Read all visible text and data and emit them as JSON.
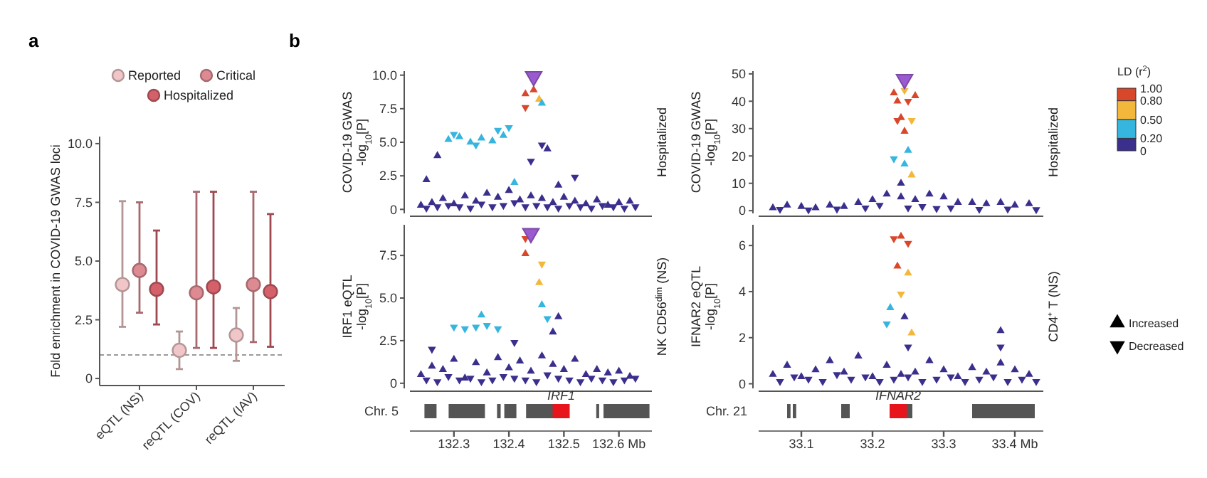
{
  "chart_data": [
    {
      "type": "scatter",
      "title": "a",
      "ylabel": "Fold enrichment in COVID-19 GWAS loci",
      "categories": [
        "eQTL (NS)",
        "reQTL (COV)",
        "reQTL (IAV)"
      ],
      "ylim": [
        -0.3,
        10.3
      ],
      "yticks": [
        0,
        {
          "value": 2.5,
          "label": "2.5"
        },
        {
          "value": 5,
          "label": "5.0"
        },
        {
          "value": 7.5,
          "label": "7.5"
        },
        {
          "value": 10,
          "label": "10.0"
        }
      ],
      "legend": "top",
      "marker": "circle",
      "ref_lines": [
        {
          "axis": "y",
          "value": 1,
          "line_style": "dashed",
          "color": "#9a9a9a"
        }
      ],
      "series": [
        {
          "name": "Reported",
          "color": "#f0c6c8",
          "values": [
            4.0,
            1.2,
            1.85
          ],
          "errors": [
            [
              2.2,
              7.55
            ],
            [
              0.4,
              2.0
            ],
            [
              0.75,
              3.0
            ]
          ]
        },
        {
          "name": "Critical",
          "color": "#de8a92",
          "values": [
            4.6,
            3.65,
            4.0
          ],
          "errors": [
            [
              2.8,
              7.5
            ],
            [
              1.3,
              7.95
            ],
            [
              1.55,
              7.95
            ]
          ]
        },
        {
          "name": "Hospitalized",
          "color": "#d4606a",
          "values": [
            3.8,
            3.9,
            3.7
          ],
          "errors": [
            [
              2.3,
              6.3
            ],
            [
              1.3,
              7.95
            ],
            [
              1.35,
              7.0
            ]
          ]
        }
      ]
    },
    {
      "type": "scatter",
      "title": "b",
      "subtitle": "Hospitalized",
      "ylabel": "COVID-19 GWAS\n-log$_{10}$[P]",
      "xlim": [
        132.22,
        132.66
      ],
      "ylim": [
        -0.3,
        10.3
      ],
      "yticks": [
        0,
        {
          "value": 2.5,
          "label": "2.5"
        },
        {
          "value": 5,
          "label": "5.0"
        },
        {
          "value": 7.5,
          "label": "7.5"
        },
        {
          "value": 10,
          "label": "10.0"
        }
      ],
      "tick_labels": "y",
      "marker": "triangle",
      "series": [
        {
          "x": [
            132.24,
            132.26,
            132.28,
            132.3,
            132.32,
            132.34,
            132.36,
            132.38,
            132.4,
            132.42,
            132.44,
            132.46,
            132.48,
            132.5,
            132.52,
            132.54,
            132.56,
            132.58,
            132.6,
            132.62,
            132.29,
            132.31,
            132.33,
            132.35,
            132.37,
            132.39,
            132.43,
            132.445,
            132.455,
            132.46,
            132.25,
            132.27,
            132.41,
            132.47,
            132.49
          ],
          "values": [
            0.3,
            0.5,
            0.8,
            0.4,
            1.0,
            0.6,
            1.2,
            0.9,
            1.4,
            0.7,
            1.0,
            0.8,
            0.5,
            0.9,
            0.6,
            0.4,
            0.7,
            0.3,
            0.5,
            0.6,
            5.2,
            5.4,
            5.0,
            5.3,
            5.1,
            5.5,
            8.6,
            8.9,
            8.2,
            7.9,
            2.2,
            4.0,
            2.0,
            4.5,
            1.8
          ],
          "colors": [
            "#3b2f8e",
            "#3b2f8e",
            "#3b2f8e",
            "#3b2f8e",
            "#3b2f8e",
            "#3b2f8e",
            "#3b2f8e",
            "#3b2f8e",
            "#3b2f8e",
            "#3b2f8e",
            "#3b2f8e",
            "#3b2f8e",
            "#3b2f8e",
            "#3b2f8e",
            "#3b2f8e",
            "#3b2f8e",
            "#3b2f8e",
            "#3b2f8e",
            "#3b2f8e",
            "#3b2f8e",
            "#36b5df",
            "#36b5df",
            "#36b5df",
            "#36b5df",
            "#36b5df",
            "#36b5df",
            "#d9472b",
            "#d9472b",
            "#f3b73c",
            "#36b5df",
            "#3b2f8e",
            "#3b2f8e",
            "#36b5df",
            "#3b2f8e",
            "#3b2f8e"
          ]
        },
        {
          "x": [
            132.25,
            132.27,
            132.29,
            132.31,
            132.33,
            132.35,
            132.37,
            132.39,
            132.41,
            132.43,
            132.45,
            132.47,
            132.49,
            132.51,
            132.53,
            132.55,
            132.57,
            132.59,
            132.61,
            132.63,
            132.3,
            132.34,
            132.38,
            132.4,
            132.44,
            132.46,
            132.43,
            132.52
          ],
          "values": [
            0.1,
            0.2,
            0.3,
            0.2,
            0.1,
            0.4,
            0.2,
            0.3,
            0.5,
            0.2,
            0.3,
            0.2,
            0.1,
            0.3,
            0.2,
            0.1,
            0.3,
            0.2,
            0.1,
            0.2,
            5.6,
            4.8,
            5.9,
            6.1,
            3.6,
            4.8,
            7.6,
            2.4
          ],
          "colors": [
            "#3b2f8e",
            "#3b2f8e",
            "#3b2f8e",
            "#3b2f8e",
            "#3b2f8e",
            "#3b2f8e",
            "#3b2f8e",
            "#3b2f8e",
            "#3b2f8e",
            "#3b2f8e",
            "#3b2f8e",
            "#3b2f8e",
            "#3b2f8e",
            "#3b2f8e",
            "#3b2f8e",
            "#3b2f8e",
            "#3b2f8e",
            "#3b2f8e",
            "#3b2f8e",
            "#3b2f8e",
            "#36b5df",
            "#36b5df",
            "#36b5df",
            "#36b5df",
            "#3b2f8e",
            "#3b2f8e",
            "#d9472b",
            "#3b2f8e"
          ]
        },
        {
          "color": "#9b5bd0",
          "x": [
            132.445
          ],
          "values": [
            9.9
          ]
        }
      ]
    },
    {
      "type": "scatter",
      "subtitle": "Hospitalized",
      "ylabel": "COVID-19 GWAS\n-log$_{10}$[P]",
      "xlim": [
        33.04,
        33.44
      ],
      "ylim": [
        -1,
        51
      ],
      "yticks": [
        0,
        10,
        20,
        30,
        40,
        50
      ],
      "tick_labels": "y",
      "marker": "triangle",
      "clabel": "LD (r$^{2}$)",
      "cticks": [
        0,
        {
          "value": 0.2,
          "label": "0.20"
        },
        {
          "value": 0.5,
          "label": "0.50"
        },
        {
          "value": 0.8,
          "label": "0.80"
        },
        {
          "value": 1,
          "label": "1.00"
        }
      ],
      "colors": [
        "#3b2f8e",
        "#36b5df",
        "#f3b73c",
        "#d9472b"
      ],
      "series": [
        {
          "x": [
            33.06,
            33.08,
            33.1,
            33.12,
            33.14,
            33.16,
            33.18,
            33.2,
            33.22,
            33.24,
            33.26,
            33.28,
            33.3,
            33.32,
            33.34,
            33.36,
            33.38,
            33.4,
            33.42,
            33.23,
            33.235,
            33.24,
            33.245,
            33.25,
            33.255,
            33.24,
            33.245,
            33.26
          ],
          "values": [
            1,
            2,
            1.5,
            1,
            2,
            1.5,
            3,
            4,
            6,
            5,
            4,
            6,
            5,
            3,
            3,
            2.5,
            3,
            2,
            2.5,
            43,
            40,
            34,
            29,
            22,
            13,
            10,
            17,
            42
          ],
          "colors": [
            "#3b2f8e",
            "#3b2f8e",
            "#3b2f8e",
            "#3b2f8e",
            "#3b2f8e",
            "#3b2f8e",
            "#3b2f8e",
            "#3b2f8e",
            "#3b2f8e",
            "#3b2f8e",
            "#3b2f8e",
            "#3b2f8e",
            "#3b2f8e",
            "#3b2f8e",
            "#3b2f8e",
            "#3b2f8e",
            "#3b2f8e",
            "#3b2f8e",
            "#3b2f8e",
            "#d9472b",
            "#d9472b",
            "#d9472b",
            "#d9472b",
            "#36b5df",
            "#f3b73c",
            "#3b2f8e",
            "#36b5df",
            "#d9472b"
          ]
        },
        {
          "x": [
            33.07,
            33.11,
            33.15,
            33.19,
            33.21,
            33.25,
            33.27,
            33.29,
            33.31,
            33.35,
            33.39,
            33.43,
            33.245,
            33.25,
            33.255,
            33.235,
            33.23
          ],
          "values": [
            0.5,
            0.3,
            0.6,
            1,
            2,
            1,
            1.5,
            0.8,
            1,
            0.5,
            0.6,
            0.4,
            44,
            40,
            33,
            33,
            19
          ],
          "colors": [
            "#3b2f8e",
            "#3b2f8e",
            "#3b2f8e",
            "#3b2f8e",
            "#3b2f8e",
            "#3b2f8e",
            "#3b2f8e",
            "#3b2f8e",
            "#3b2f8e",
            "#3b2f8e",
            "#3b2f8e",
            "#3b2f8e",
            "#f3b73c",
            "#d9472b",
            "#f3b73c",
            "#d9472b",
            "#36b5df"
          ]
        },
        {
          "color": "#9b5bd0",
          "x": [
            33.245
          ],
          "values": [
            48
          ]
        }
      ]
    },
    {
      "type": "scatter",
      "subtitle": "NK CD56$^{dim}$ (NS)",
      "ylabel": "IRF1 eQTL\n-log$_{10}$[P]",
      "xlim": [
        132.22,
        132.66
      ],
      "xticks": [
        132.3,
        132.4,
        132.5,
        {
          "value": 132.6,
          "label": "132.6 Mb"
        }
      ],
      "ylim": [
        -0.3,
        9.3
      ],
      "yticks": [
        0,
        {
          "value": 2.5,
          "label": "2.5"
        },
        {
          "value": 5,
          "label": "5.0"
        },
        {
          "value": 7.5,
          "label": "7.5"
        }
      ],
      "marker": "triangle",
      "annotations": [
        "Chr. 5",
        "IRF1"
      ],
      "series": [
        {
          "x": [
            132.24,
            132.26,
            132.28,
            132.3,
            132.32,
            132.34,
            132.36,
            132.38,
            132.4,
            132.42,
            132.44,
            132.46,
            132.48,
            132.5,
            132.52,
            132.54,
            132.56,
            132.58,
            132.6,
            132.62,
            132.43,
            132.455,
            132.46,
            132.49,
            132.48,
            132.35
          ],
          "values": [
            0.5,
            1.0,
            0.8,
            1.4,
            0.3,
            1.2,
            0.6,
            1.5,
            0.9,
            1.3,
            0.7,
            1.6,
            1.1,
            0.8,
            1.4,
            0.5,
            0.8,
            0.6,
            0.7,
            0.4,
            7.6,
            5.9,
            4.6,
            3.9,
            3.0,
            4.0
          ],
          "colors": [
            "#3b2f8e",
            "#3b2f8e",
            "#3b2f8e",
            "#3b2f8e",
            "#3b2f8e",
            "#3b2f8e",
            "#3b2f8e",
            "#3b2f8e",
            "#3b2f8e",
            "#3b2f8e",
            "#3b2f8e",
            "#3b2f8e",
            "#3b2f8e",
            "#3b2f8e",
            "#3b2f8e",
            "#3b2f8e",
            "#3b2f8e",
            "#3b2f8e",
            "#3b2f8e",
            "#3b2f8e",
            "#d9472b",
            "#f3b73c",
            "#36b5df",
            "#3b2f8e",
            "#3b2f8e",
            "#36b5df"
          ]
        },
        {
          "x": [
            132.25,
            132.27,
            132.29,
            132.31,
            132.33,
            132.35,
            132.37,
            132.39,
            132.41,
            132.43,
            132.45,
            132.47,
            132.49,
            132.51,
            132.53,
            132.55,
            132.57,
            132.59,
            132.61,
            132.63,
            132.3,
            132.32,
            132.34,
            132.36,
            132.38,
            132.43,
            132.46,
            132.47,
            132.26,
            132.41
          ],
          "values": [
            0.2,
            0.1,
            0.4,
            0.2,
            0.3,
            0.1,
            0.2,
            0.4,
            0.3,
            0.2,
            0.1,
            0.5,
            0.3,
            0.2,
            0.1,
            0.3,
            0.2,
            0.1,
            0.2,
            0.3,
            3.3,
            3.2,
            3.3,
            3.4,
            3.2,
            8.5,
            7.0,
            3.8,
            2.0,
            2.4
          ],
          "colors": [
            "#3b2f8e",
            "#3b2f8e",
            "#3b2f8e",
            "#3b2f8e",
            "#3b2f8e",
            "#3b2f8e",
            "#3b2f8e",
            "#3b2f8e",
            "#3b2f8e",
            "#3b2f8e",
            "#3b2f8e",
            "#3b2f8e",
            "#3b2f8e",
            "#3b2f8e",
            "#3b2f8e",
            "#3b2f8e",
            "#3b2f8e",
            "#3b2f8e",
            "#3b2f8e",
            "#3b2f8e",
            "#36b5df",
            "#36b5df",
            "#36b5df",
            "#36b5df",
            "#36b5df",
            "#d9472b",
            "#f3b73c",
            "#36b5df",
            "#3b2f8e",
            "#3b2f8e"
          ]
        },
        {
          "color": "#9b5bd0",
          "x": [
            132.44
          ],
          "values": [
            8.8
          ]
        }
      ]
    },
    {
      "type": "scatter",
      "subtitle": "CD4⁺ T (NS)",
      "ylabel": "IFNAR2 eQTL\n-log$_{10}$[P]",
      "xlim": [
        33.04,
        33.44
      ],
      "xticks": [
        33.1,
        33.2,
        33.3,
        {
          "value": 33.4,
          "label": "33.4 Mb"
        }
      ],
      "ylim": [
        -0.2,
        6.9
      ],
      "yticks": [
        0,
        2,
        4,
        6
      ],
      "marker": "triangle",
      "legend": "right",
      "annotations": [
        "Chr. 21",
        "IFNAR2"
      ],
      "series": [
        {
          "name": "Increased",
          "x": [
            33.06,
            33.08,
            33.1,
            33.12,
            33.14,
            33.16,
            33.18,
            33.2,
            33.22,
            33.24,
            33.26,
            33.28,
            33.3,
            33.32,
            33.34,
            33.36,
            33.38,
            33.4,
            33.42,
            33.24,
            33.235,
            33.25,
            33.225,
            33.255,
            33.38,
            33.245
          ],
          "values": [
            0.4,
            0.8,
            0.3,
            0.6,
            1.0,
            0.5,
            1.2,
            0.3,
            0.8,
            0.4,
            0.5,
            1.0,
            0.6,
            0.3,
            0.7,
            0.5,
            0.9,
            0.6,
            0.4,
            6.4,
            5.1,
            4.8,
            3.3,
            2.2,
            2.3,
            2.9
          ],
          "colors": [
            "#3b2f8e",
            "#3b2f8e",
            "#3b2f8e",
            "#3b2f8e",
            "#3b2f8e",
            "#3b2f8e",
            "#3b2f8e",
            "#3b2f8e",
            "#3b2f8e",
            "#3b2f8e",
            "#3b2f8e",
            "#3b2f8e",
            "#3b2f8e",
            "#3b2f8e",
            "#3b2f8e",
            "#3b2f8e",
            "#3b2f8e",
            "#3b2f8e",
            "#3b2f8e",
            "#d9472b",
            "#d9472b",
            "#f3b73c",
            "#36b5df",
            "#f3b73c",
            "#3b2f8e",
            "#3b2f8e"
          ]
        },
        {
          "name": "Decreased",
          "x": [
            33.07,
            33.09,
            33.11,
            33.13,
            33.15,
            33.17,
            33.19,
            33.21,
            33.23,
            33.25,
            33.27,
            33.29,
            33.31,
            33.33,
            33.35,
            33.37,
            33.39,
            33.41,
            33.43,
            33.23,
            33.25,
            33.24,
            33.22,
            33.38,
            33.25
          ],
          "values": [
            0.1,
            0.3,
            0.2,
            0.1,
            0.4,
            0.2,
            0.3,
            0.1,
            0.2,
            0.3,
            0.1,
            0.2,
            0.3,
            0.1,
            0.2,
            0.3,
            0.1,
            0.2,
            0.1,
            6.3,
            6.1,
            3.9,
            2.6,
            1.6,
            1.6
          ],
          "colors": [
            "#3b2f8e",
            "#3b2f8e",
            "#3b2f8e",
            "#3b2f8e",
            "#3b2f8e",
            "#3b2f8e",
            "#3b2f8e",
            "#3b2f8e",
            "#3b2f8e",
            "#3b2f8e",
            "#3b2f8e",
            "#3b2f8e",
            "#3b2f8e",
            "#3b2f8e",
            "#3b2f8e",
            "#3b2f8e",
            "#3b2f8e",
            "#3b2f8e",
            "#3b2f8e",
            "#d9472b",
            "#d9472b",
            "#f3b73c",
            "#36b5df",
            "#3b2f8e",
            "#3b2f8e"
          ]
        }
      ]
    }
  ]
}
